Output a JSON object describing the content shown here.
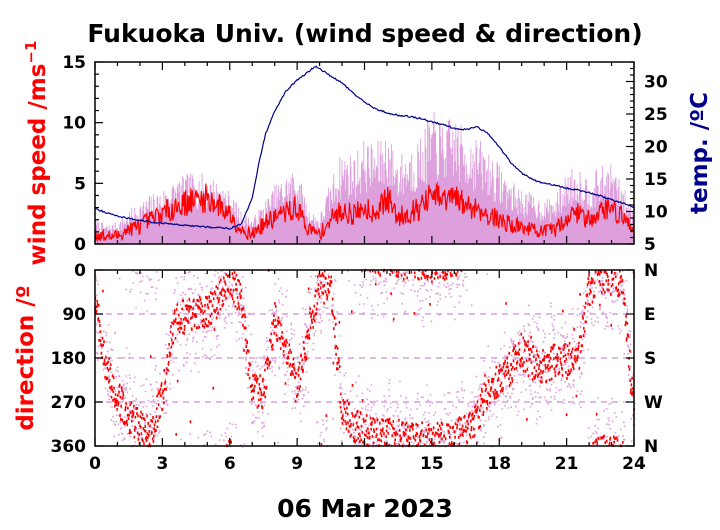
{
  "title": "Fukuoka Univ. (wind speed & direction)",
  "date_label": "06 Mar 2023",
  "colors": {
    "wind": "#ff0000",
    "gust": "#dda0dd",
    "temp": "#00008b",
    "frame": "#000000"
  },
  "chart_data": [
    {
      "type": "line",
      "panel": "wind speed & temperature",
      "y_left_label_main": "wind speed /ms",
      "y_left_label_sup": "−1",
      "y_right_label": "temp. /ºC",
      "xlim": [
        0,
        24
      ],
      "x_ticks": [
        "0",
        "3",
        "6",
        "9",
        "12",
        "15",
        "18",
        "21",
        "24"
      ],
      "ylim_left": [
        0,
        15
      ],
      "y_left_ticks": [
        "0",
        "5",
        "10",
        "15"
      ],
      "ylim_right": [
        5,
        33
      ],
      "y_right_ticks": [
        "5",
        "10",
        "15",
        "20",
        "25",
        "30"
      ],
      "series": [
        {
          "role": "wind speed (10-min mean)",
          "axis": "left",
          "x": [
            0,
            0.5,
            1,
            1.5,
            2,
            2.5,
            3,
            3.5,
            4,
            4.5,
            5,
            5.5,
            6,
            6.5,
            7,
            7.5,
            8,
            8.5,
            9,
            9.5,
            10,
            10.5,
            11,
            11.5,
            12,
            12.5,
            13,
            13.5,
            14,
            14.5,
            15,
            15.5,
            16,
            16.5,
            17,
            17.5,
            18,
            18.5,
            19,
            19.5,
            20,
            20.5,
            21,
            21.5,
            22,
            22.5,
            23,
            23.5,
            24
          ],
          "y": [
            0.8,
            0.6,
            0.7,
            1.2,
            1.5,
            2.0,
            2.5,
            3.0,
            3.4,
            3.6,
            3.8,
            3.2,
            2.5,
            1.2,
            0.8,
            1.6,
            2.2,
            2.6,
            3.0,
            1.2,
            0.8,
            2.0,
            2.8,
            2.4,
            3.0,
            2.6,
            3.8,
            2.2,
            2.6,
            3.0,
            4.0,
            3.6,
            3.8,
            3.2,
            3.0,
            2.4,
            2.0,
            1.6,
            1.4,
            1.2,
            1.0,
            1.2,
            2.2,
            2.6,
            2.0,
            2.8,
            3.0,
            2.2,
            1.2
          ]
        },
        {
          "role": "wind speed (gust / instantaneous max)",
          "axis": "left",
          "x": [
            0,
            0.5,
            1,
            1.5,
            2,
            2.5,
            3,
            3.5,
            4,
            4.5,
            5,
            5.5,
            6,
            6.5,
            7,
            7.5,
            8,
            8.5,
            9,
            9.5,
            10,
            10.5,
            11,
            11.5,
            12,
            12.5,
            13,
            13.5,
            14,
            14.5,
            15,
            15.5,
            16,
            16.5,
            17,
            17.5,
            18,
            18.5,
            19,
            19.5,
            20,
            20.5,
            21,
            21.5,
            22,
            22.5,
            23,
            23.5,
            24
          ],
          "y": [
            1.8,
            1.4,
            1.6,
            2.4,
            3.0,
            3.6,
            4.0,
            4.6,
            5.0,
            5.2,
            5.0,
            4.6,
            3.8,
            2.4,
            1.8,
            3.0,
            4.2,
            5.0,
            5.6,
            2.6,
            2.0,
            4.6,
            6.8,
            6.4,
            7.6,
            7.2,
            8.2,
            6.4,
            7.0,
            7.8,
            9.6,
            8.8,
            9.4,
            8.0,
            7.8,
            6.8,
            5.8,
            4.6,
            4.0,
            3.6,
            3.2,
            3.4,
            5.2,
            5.8,
            4.8,
            5.6,
            5.8,
            4.2,
            2.6
          ]
        },
        {
          "role": "temperature",
          "axis": "right",
          "x": [
            0,
            0.5,
            1,
            2,
            3,
            4,
            5,
            6,
            6.5,
            7,
            7.3,
            7.6,
            8,
            8.5,
            9,
            9.5,
            9.8,
            10,
            10.5,
            11,
            11.5,
            12,
            12.5,
            13,
            13.5,
            14,
            14.5,
            15,
            15.5,
            16,
            16.5,
            17,
            17.5,
            18,
            18.5,
            19,
            19.5,
            20,
            20.5,
            21,
            21.5,
            22,
            22.5,
            23,
            23.5,
            24
          ],
          "y": [
            10.5,
            9.8,
            9.3,
            8.6,
            8.2,
            7.9,
            7.6,
            7.4,
            8.0,
            12.0,
            17.5,
            22.0,
            25.5,
            28.5,
            30.2,
            31.5,
            32.3,
            32.0,
            30.8,
            29.8,
            28.2,
            26.8,
            25.8,
            25.2,
            24.8,
            24.6,
            24.3,
            23.8,
            23.4,
            22.8,
            22.6,
            23.0,
            22.0,
            20.0,
            17.6,
            15.9,
            14.9,
            14.3,
            14.0,
            13.6,
            13.3,
            12.9,
            12.4,
            11.8,
            11.3,
            10.7
          ]
        }
      ]
    },
    {
      "type": "scatter",
      "panel": "wind direction",
      "y_left_label": "direction /º",
      "xlim": [
        0,
        24
      ],
      "x_ticks": [
        "0",
        "3",
        "6",
        "9",
        "12",
        "15",
        "18",
        "21",
        "24"
      ],
      "ylim": [
        0,
        360
      ],
      "y_inverted": true,
      "y_ticks": [
        "0",
        "90",
        "180",
        "270",
        "360"
      ],
      "y_right_ticks": [
        "N",
        "E",
        "S",
        "W",
        "N"
      ],
      "grid": "dashed at 90, 180, 270",
      "series": [
        {
          "role": "wind direction (mean)",
          "x": [
            0,
            0.5,
            1,
            1.5,
            2,
            2.5,
            3,
            3.5,
            4,
            4.5,
            5,
            5.5,
            6,
            6.5,
            7,
            7.5,
            8,
            8.5,
            9,
            9.5,
            10,
            10.5,
            11,
            11.5,
            12,
            12.5,
            13,
            13.5,
            14,
            14.5,
            15,
            15.5,
            16,
            16.5,
            17,
            17.5,
            18,
            18.5,
            19,
            19.5,
            20,
            20.5,
            21,
            21.5,
            22,
            22.5,
            23,
            23.5,
            24
          ],
          "y": [
            60,
            200,
            260,
            300,
            320,
            330,
            260,
            110,
            95,
            88,
            90,
            60,
            20,
            60,
            250,
            250,
            100,
            150,
            250,
            130,
            30,
            40,
            280,
            320,
            330,
            340,
            335,
            340,
            350,
            345,
            350,
            345,
            340,
            330,
            300,
            250,
            220,
            200,
            170,
            190,
            200,
            185,
            180,
            190,
            40,
            10,
            15,
            20,
            300
          ]
        }
      ]
    }
  ]
}
